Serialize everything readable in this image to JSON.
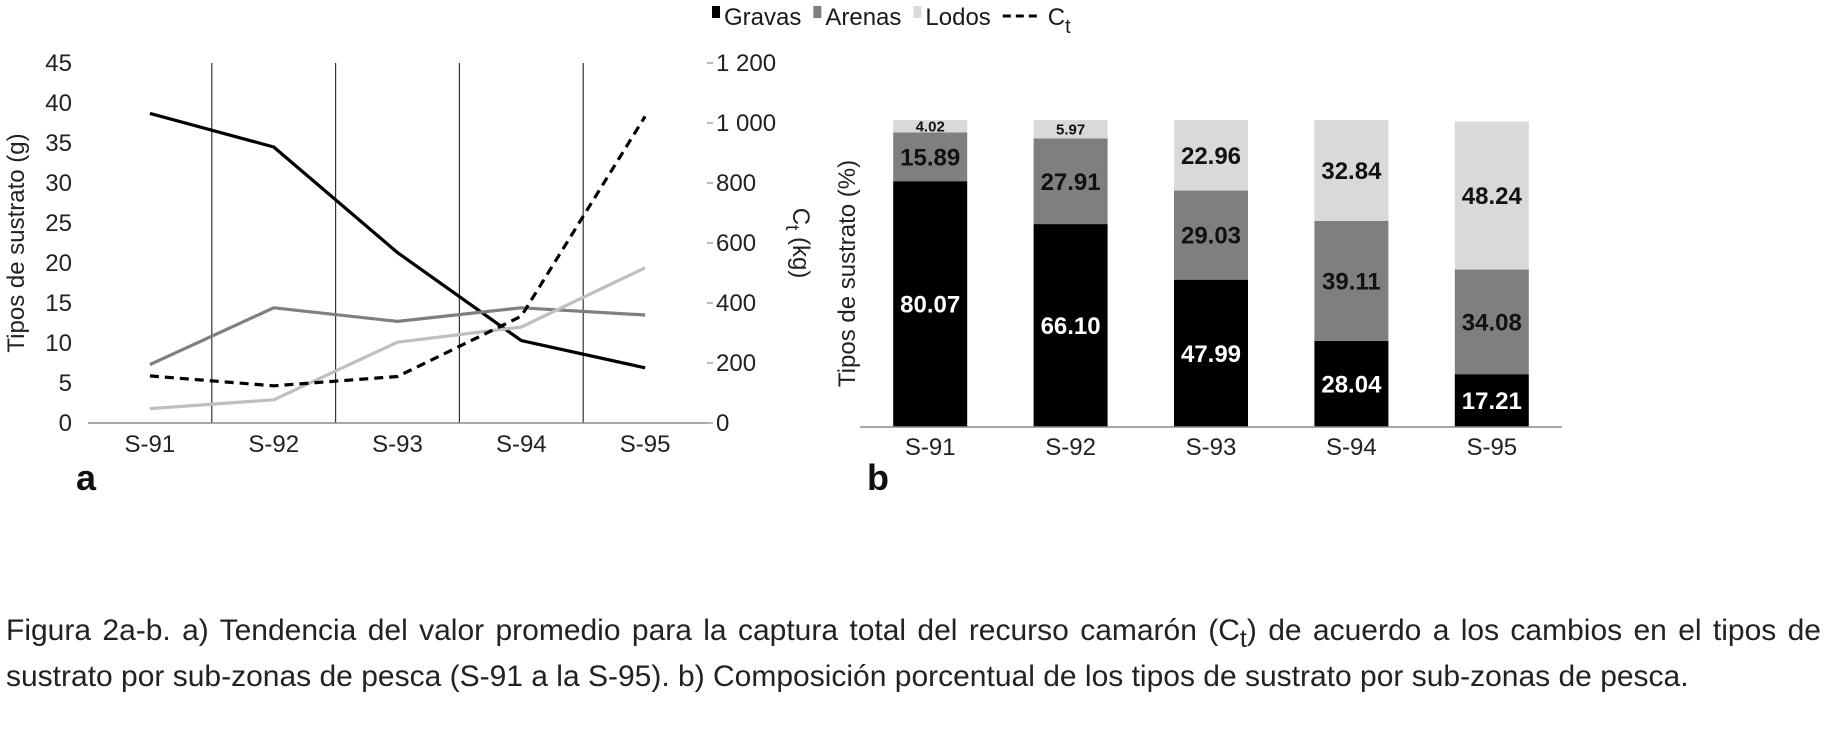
{
  "legend": [
    {
      "label": "Gravas",
      "type": "swatch",
      "color": "#000000"
    },
    {
      "label": "Arenas",
      "type": "swatch",
      "color": "#7f7f7f"
    },
    {
      "label": "Lodos",
      "type": "swatch",
      "color": "#d9d9d9"
    },
    {
      "label": "C",
      "sub": "t",
      "type": "dashed-line",
      "color": "#000000"
    }
  ],
  "chart_data": [
    {
      "type": "line",
      "panel_label": "a",
      "categories": [
        "S-91",
        "S-92",
        "S-93",
        "S-94",
        "S-95"
      ],
      "ylabel": "Tipos de sustrato (g)",
      "ylim": [
        0,
        45
      ],
      "yticks": [
        "0",
        "5",
        "10",
        "15",
        "20",
        "25",
        "30",
        "35",
        "40",
        "45"
      ],
      "y2label": "C",
      "y2label_sub": "t",
      "y2label_suffix": " (kg)",
      "y2lim": [
        0,
        1200
      ],
      "y2ticks": [
        "0",
        "200",
        "400",
        "600",
        "800",
        "1 000",
        "1 200"
      ],
      "series": [
        {
          "name": "Gravas",
          "axis": "left",
          "color": "#000000",
          "dash": false,
          "values": [
            38.7,
            34.5,
            21.3,
            10.3,
            6.9
          ]
        },
        {
          "name": "Arenas",
          "axis": "left",
          "color": "#7f7f7f",
          "dash": false,
          "values": [
            7.3,
            14.4,
            12.7,
            14.4,
            13.5
          ]
        },
        {
          "name": "Lodos",
          "axis": "left",
          "color": "#bfbfbf",
          "dash": false,
          "values": [
            1.8,
            2.9,
            10.1,
            12.0,
            19.4
          ]
        },
        {
          "name": "Ct",
          "axis": "right",
          "color": "#000000",
          "dash": true,
          "values": [
            157,
            124,
            155,
            356,
            1022
          ]
        }
      ]
    },
    {
      "type": "bar",
      "stacked": true,
      "panel_label": "b",
      "categories": [
        "S-91",
        "S-92",
        "S-93",
        "S-94",
        "S-95"
      ],
      "ylabel": "Tipos de sustrato (%)",
      "ylim": [
        0,
        100
      ],
      "series": [
        {
          "name": "Gravas",
          "color": "#000000",
          "label_color": "#ffffff",
          "values": [
            80.07,
            66.1,
            47.99,
            28.04,
            17.21
          ],
          "labels": [
            "80.07",
            "66.10",
            "47.99",
            "28.04",
            "17.21"
          ]
        },
        {
          "name": "Arenas",
          "color": "#7f7f7f",
          "label_color": "#111111",
          "values": [
            15.89,
            27.91,
            29.03,
            39.11,
            34.08
          ],
          "labels": [
            "15.89",
            "27.91",
            "29.03",
            "39.11",
            "34.08"
          ]
        },
        {
          "name": "Lodos",
          "color": "#d9d9d9",
          "label_color": "#111111",
          "values": [
            4.02,
            5.97,
            22.96,
            32.84,
            48.24
          ],
          "labels": [
            "4.02",
            "5.97",
            "22.96",
            "32.84",
            "48.24"
          ]
        }
      ]
    }
  ],
  "caption": {
    "text": "Figura 2a-b. a) Tendencia del valor promedio para la captura total del recurso camarón (C",
    "sub": "t",
    "text_after": ") de acuerdo a los cambios en el tipos de sustrato por sub-zonas de pesca (S-91 a la S-95). b) Composición porcentual de los tipos de sustrato por sub-zonas de pesca."
  }
}
